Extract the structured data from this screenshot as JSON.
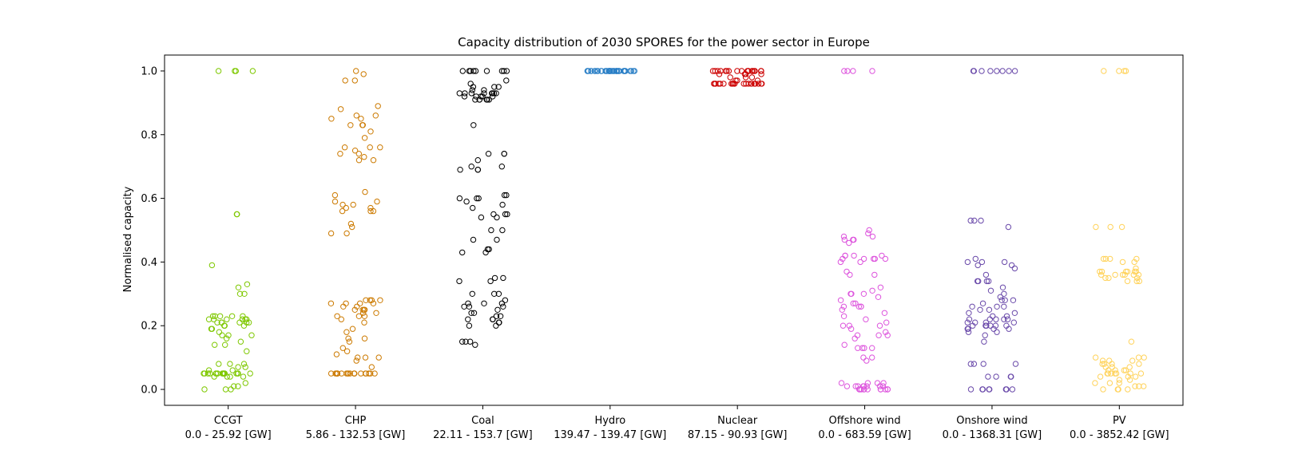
{
  "chart_data": {
    "type": "scatter",
    "title": "Capacity distribution of 2030 SPORES for the power sector in Europe",
    "xlabel": "",
    "ylabel": "Normalised capacity",
    "ylim": [
      -0.05,
      1.05
    ],
    "yticks": [
      "0.0",
      "0.2",
      "0.4",
      "0.6",
      "0.8",
      "1.0"
    ],
    "grid": false,
    "legend": "none",
    "categories": [
      {
        "name": "CCGT",
        "range": "0.0 - 25.92 [GW]",
        "color": "#7ec800"
      },
      {
        "name": "CHP",
        "range": "5.86 - 132.53 [GW]",
        "color": "#cc7a00"
      },
      {
        "name": "Coal",
        "range": "22.11 - 153.7 [GW]",
        "color": "#000000"
      },
      {
        "name": "Hydro",
        "range": "139.47 - 139.47 [GW]",
        "color": "#2a7fc6"
      },
      {
        "name": "Nuclear",
        "range": "87.15 - 90.93 [GW]",
        "color": "#cc0000"
      },
      {
        "name": "Offshore wind",
        "range": "0.0 - 683.59 [GW]",
        "color": "#dd55dd"
      },
      {
        "name": "Onshore wind",
        "range": "0.0 - 1368.31 [GW]",
        "color": "#6a4aaa"
      },
      {
        "name": "PV",
        "range": "0.0 - 3852.42 [GW]",
        "color": "#ffd35c"
      }
    ],
    "series": [
      {
        "category": "CCGT",
        "values": [
          1.0,
          1.0,
          1.0,
          1.0,
          0.55,
          0.55,
          0.39,
          0.33,
          0.32,
          0.3,
          0.3,
          0.23,
          0.23,
          0.23,
          0.23,
          0.23,
          0.22,
          0.22,
          0.22,
          0.22,
          0.22,
          0.22,
          0.21,
          0.21,
          0.21,
          0.21,
          0.21,
          0.21,
          0.2,
          0.2,
          0.2,
          0.19,
          0.19,
          0.18,
          0.17,
          0.17,
          0.17,
          0.16,
          0.15,
          0.14,
          0.14,
          0.12,
          0.08,
          0.08,
          0.08,
          0.07,
          0.07,
          0.06,
          0.06,
          0.05,
          0.05,
          0.05,
          0.05,
          0.05,
          0.05,
          0.05,
          0.05,
          0.05,
          0.05,
          0.05,
          0.05,
          0.05,
          0.05,
          0.05,
          0.05,
          0.05,
          0.05,
          0.04,
          0.04,
          0.04,
          0.04,
          0.02,
          0.01,
          0.01,
          0.0,
          0.0,
          0.0
        ]
      },
      {
        "category": "CHP",
        "values": [
          1.0,
          0.99,
          0.97,
          0.97,
          0.89,
          0.88,
          0.86,
          0.86,
          0.85,
          0.85,
          0.83,
          0.83,
          0.83,
          0.81,
          0.79,
          0.76,
          0.76,
          0.76,
          0.75,
          0.74,
          0.74,
          0.73,
          0.72,
          0.72,
          0.62,
          0.61,
          0.59,
          0.59,
          0.58,
          0.58,
          0.57,
          0.57,
          0.56,
          0.56,
          0.56,
          0.52,
          0.51,
          0.49,
          0.49,
          0.28,
          0.28,
          0.28,
          0.28,
          0.27,
          0.27,
          0.27,
          0.27,
          0.26,
          0.26,
          0.25,
          0.25,
          0.25,
          0.25,
          0.24,
          0.24,
          0.23,
          0.23,
          0.23,
          0.22,
          0.21,
          0.19,
          0.18,
          0.16,
          0.16,
          0.15,
          0.13,
          0.12,
          0.11,
          0.1,
          0.1,
          0.1,
          0.09,
          0.07,
          0.05,
          0.05,
          0.05,
          0.05,
          0.05,
          0.05,
          0.05,
          0.05,
          0.05,
          0.05,
          0.05,
          0.05,
          0.05,
          0.05,
          0.05,
          0.05,
          0.05,
          0.05,
          0.05,
          0.05
        ]
      },
      {
        "category": "Coal",
        "values": [
          1.0,
          1.0,
          1.0,
          1.0,
          1.0,
          1.0,
          1.0,
          1.0,
          1.0,
          0.97,
          0.96,
          0.95,
          0.95,
          0.95,
          0.94,
          0.94,
          0.93,
          0.93,
          0.93,
          0.93,
          0.93,
          0.93,
          0.93,
          0.93,
          0.92,
          0.92,
          0.92,
          0.92,
          0.92,
          0.91,
          0.91,
          0.91,
          0.91,
          0.91,
          0.91,
          0.83,
          0.74,
          0.74,
          0.74,
          0.72,
          0.7,
          0.7,
          0.69,
          0.69,
          0.69,
          0.61,
          0.61,
          0.6,
          0.6,
          0.6,
          0.59,
          0.58,
          0.57,
          0.55,
          0.55,
          0.55,
          0.54,
          0.54,
          0.5,
          0.5,
          0.47,
          0.47,
          0.44,
          0.44,
          0.43,
          0.43,
          0.35,
          0.35,
          0.34,
          0.34,
          0.3,
          0.3,
          0.3,
          0.28,
          0.27,
          0.27,
          0.27,
          0.26,
          0.26,
          0.26,
          0.25,
          0.24,
          0.24,
          0.23,
          0.23,
          0.22,
          0.22,
          0.22,
          0.21,
          0.21,
          0.2,
          0.2,
          0.15,
          0.15,
          0.15,
          0.14
        ]
      },
      {
        "category": "Hydro",
        "values": [
          1.0,
          1.0,
          1.0,
          1.0,
          1.0,
          1.0,
          1.0,
          1.0,
          1.0,
          1.0,
          1.0,
          1.0,
          1.0,
          1.0,
          1.0,
          1.0,
          1.0,
          1.0,
          1.0,
          1.0,
          1.0,
          1.0,
          1.0,
          1.0,
          1.0,
          1.0,
          1.0,
          1.0,
          1.0,
          1.0,
          1.0,
          1.0,
          1.0,
          1.0,
          1.0,
          1.0,
          1.0,
          1.0,
          1.0,
          1.0
        ]
      },
      {
        "category": "Nuclear",
        "values": [
          1.0,
          1.0,
          1.0,
          1.0,
          1.0,
          1.0,
          1.0,
          1.0,
          1.0,
          1.0,
          1.0,
          1.0,
          1.0,
          1.0,
          1.0,
          1.0,
          1.0,
          1.0,
          0.99,
          0.99,
          0.99,
          0.99,
          0.98,
          0.98,
          0.98,
          0.97,
          0.97,
          0.97,
          0.96,
          0.96,
          0.96,
          0.96,
          0.96,
          0.96,
          0.96,
          0.96,
          0.96,
          0.96,
          0.96,
          0.96,
          0.96,
          0.96,
          0.96,
          0.96,
          0.96,
          0.96,
          0.96,
          0.96,
          0.96,
          0.96
        ]
      },
      {
        "category": "Offshore wind",
        "values": [
          1.0,
          1.0,
          1.0,
          1.0,
          0.5,
          0.49,
          0.48,
          0.48,
          0.47,
          0.47,
          0.47,
          0.46,
          0.42,
          0.42,
          0.42,
          0.42,
          0.41,
          0.41,
          0.41,
          0.41,
          0.41,
          0.4,
          0.4,
          0.37,
          0.36,
          0.36,
          0.32,
          0.31,
          0.3,
          0.3,
          0.3,
          0.29,
          0.28,
          0.27,
          0.27,
          0.26,
          0.26,
          0.26,
          0.26,
          0.25,
          0.24,
          0.23,
          0.22,
          0.21,
          0.2,
          0.2,
          0.2,
          0.19,
          0.18,
          0.17,
          0.17,
          0.17,
          0.16,
          0.14,
          0.13,
          0.13,
          0.13,
          0.13,
          0.1,
          0.1,
          0.09,
          0.02,
          0.02,
          0.02,
          0.02,
          0.01,
          0.01,
          0.01,
          0.01,
          0.01,
          0.01,
          0.01,
          0.01,
          0.0,
          0.0,
          0.0,
          0.0,
          0.0,
          0.0,
          0.0,
          0.0,
          0.0,
          0.0,
          0.0
        ]
      },
      {
        "category": "Onshore wind",
        "values": [
          1.0,
          1.0,
          1.0,
          1.0,
          1.0,
          1.0,
          1.0,
          1.0,
          0.53,
          0.53,
          0.53,
          0.51,
          0.41,
          0.4,
          0.4,
          0.4,
          0.39,
          0.39,
          0.38,
          0.36,
          0.34,
          0.34,
          0.34,
          0.34,
          0.32,
          0.31,
          0.3,
          0.29,
          0.28,
          0.28,
          0.28,
          0.27,
          0.26,
          0.26,
          0.26,
          0.25,
          0.25,
          0.24,
          0.24,
          0.23,
          0.23,
          0.22,
          0.22,
          0.22,
          0.22,
          0.22,
          0.21,
          0.21,
          0.21,
          0.21,
          0.2,
          0.2,
          0.2,
          0.2,
          0.2,
          0.2,
          0.19,
          0.19,
          0.19,
          0.19,
          0.18,
          0.18,
          0.17,
          0.15,
          0.08,
          0.08,
          0.08,
          0.08,
          0.04,
          0.04,
          0.04,
          0.04,
          0.0,
          0.0,
          0.0,
          0.0,
          0.0,
          0.0,
          0.0,
          0.0
        ]
      },
      {
        "category": "PV",
        "values": [
          1.0,
          1.0,
          1.0,
          1.0,
          0.51,
          0.51,
          0.51,
          0.41,
          0.41,
          0.41,
          0.41,
          0.4,
          0.4,
          0.38,
          0.37,
          0.37,
          0.37,
          0.37,
          0.37,
          0.37,
          0.36,
          0.36,
          0.36,
          0.36,
          0.36,
          0.36,
          0.35,
          0.35,
          0.35,
          0.34,
          0.34,
          0.34,
          0.15,
          0.1,
          0.1,
          0.1,
          0.09,
          0.09,
          0.09,
          0.08,
          0.08,
          0.08,
          0.08,
          0.07,
          0.07,
          0.07,
          0.06,
          0.06,
          0.06,
          0.06,
          0.05,
          0.05,
          0.05,
          0.05,
          0.05,
          0.05,
          0.05,
          0.04,
          0.04,
          0.04,
          0.03,
          0.03,
          0.02,
          0.02,
          0.02,
          0.01,
          0.01,
          0.01,
          0.0,
          0.0,
          0.0,
          0.0
        ]
      }
    ]
  }
}
